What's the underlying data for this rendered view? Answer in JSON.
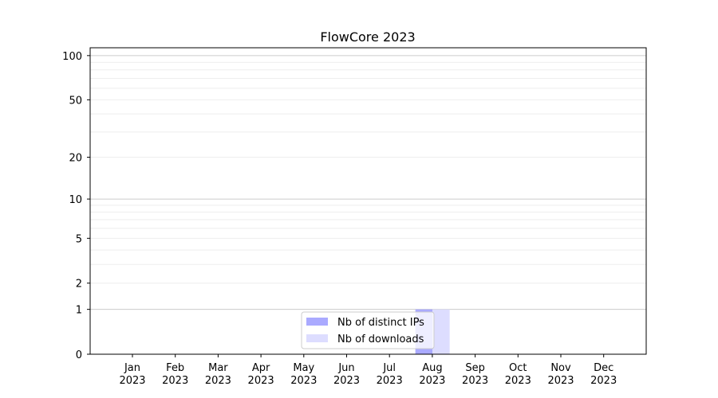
{
  "chart_data": {
    "type": "bar",
    "title": "FlowCore 2023",
    "xlabel": "",
    "ylabel": "",
    "categories": [
      "Jan\n2023",
      "Feb\n2023",
      "Mar\n2023",
      "Apr\n2023",
      "May\n2023",
      "Jun\n2023",
      "Jul\n2023",
      "Aug\n2023",
      "Sep\n2023",
      "Oct\n2023",
      "Nov\n2023",
      "Dec\n2023"
    ],
    "series": [
      {
        "name": "Nb of distinct IPs",
        "color": "#aaaaff",
        "values": [
          0,
          0,
          0,
          0,
          0,
          0,
          0,
          1,
          0,
          0,
          0,
          0
        ]
      },
      {
        "name": "Nb of downloads",
        "color": "#ddddff",
        "values": [
          0,
          0,
          0,
          0,
          0,
          0,
          0,
          1,
          0,
          0,
          0,
          0
        ]
      }
    ],
    "y_scale": "log(1+y)",
    "ylim": [
      0,
      113
    ],
    "yticks": [
      0,
      1,
      2,
      5,
      10,
      20,
      50,
      100
    ],
    "grid": true,
    "legend": "lower-center"
  }
}
